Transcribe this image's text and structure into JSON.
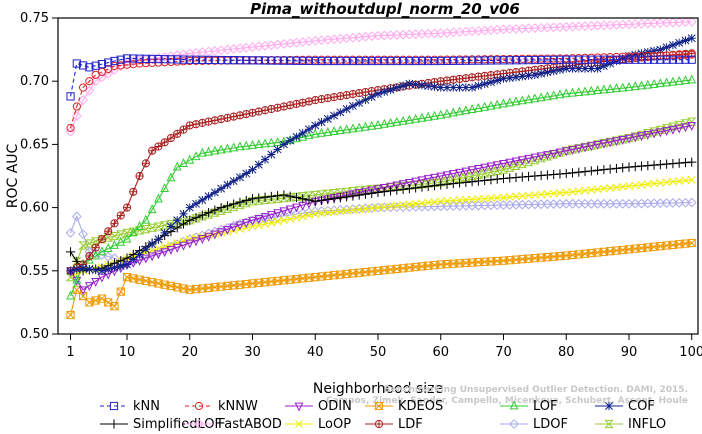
{
  "chart_data": {
    "type": "line",
    "title": "Pima_withoutdupl_norm_20_v06",
    "xlabel": "Neighborhood size",
    "ylabel": "ROC AUC",
    "xlim": [
      1,
      100
    ],
    "ylim": [
      0.5,
      0.75
    ],
    "xticks": [
      1,
      10,
      20,
      30,
      40,
      50,
      60,
      70,
      80,
      90,
      100
    ],
    "yticks": [
      "0.50",
      "0.55",
      "0.60",
      "0.65",
      "0.70",
      "0.75"
    ],
    "grid": false,
    "watermark_lines": [
      "Benchmarking Unsupervised Outlier Detection. DAMI, 2015.",
      "Campos, Zimek, Sander, Campello, Micenkova, Schubert, Assent, Houle"
    ],
    "series": [
      {
        "name": "kNN",
        "color": "#2222cc",
        "marker": "square",
        "dash": "4,3",
        "knots": [
          [
            1,
            0.688
          ],
          [
            2,
            0.714
          ],
          [
            4,
            0.711
          ],
          [
            8,
            0.716
          ],
          [
            10,
            0.718
          ],
          [
            20,
            0.717
          ],
          [
            40,
            0.716
          ],
          [
            60,
            0.716
          ],
          [
            80,
            0.717
          ],
          [
            100,
            0.717
          ]
        ]
      },
      {
        "name": "kNNW",
        "color": "#dd2222",
        "marker": "circle",
        "dash": "4,3",
        "knots": [
          [
            1,
            0.663
          ],
          [
            2,
            0.68
          ],
          [
            3,
            0.695
          ],
          [
            5,
            0.705
          ],
          [
            8,
            0.712
          ],
          [
            12,
            0.714
          ],
          [
            20,
            0.716
          ],
          [
            40,
            0.717
          ],
          [
            60,
            0.717
          ],
          [
            80,
            0.718
          ],
          [
            100,
            0.721
          ]
        ]
      },
      {
        "name": "ODIN",
        "color": "#9922cc",
        "marker": "tri-down",
        "dash": "",
        "knots": [
          [
            1,
            0.55
          ],
          [
            3,
            0.535
          ],
          [
            6,
            0.545
          ],
          [
            10,
            0.555
          ],
          [
            20,
            0.572
          ],
          [
            30,
            0.59
          ],
          [
            40,
            0.605
          ],
          [
            50,
            0.615
          ],
          [
            60,
            0.625
          ],
          [
            70,
            0.635
          ],
          [
            80,
            0.645
          ],
          [
            90,
            0.655
          ],
          [
            100,
            0.665
          ]
        ]
      },
      {
        "name": "KDEOS",
        "color": "#ee9900",
        "marker": "square-x",
        "dash": "",
        "knots": [
          [
            1,
            0.515
          ],
          [
            2,
            0.535
          ],
          [
            4,
            0.525
          ],
          [
            6,
            0.528
          ],
          [
            8,
            0.522
          ],
          [
            10,
            0.545
          ],
          [
            15,
            0.54
          ],
          [
            20,
            0.535
          ],
          [
            30,
            0.54
          ],
          [
            40,
            0.545
          ],
          [
            50,
            0.55
          ],
          [
            60,
            0.555
          ],
          [
            70,
            0.558
          ],
          [
            80,
            0.562
          ],
          [
            90,
            0.567
          ],
          [
            100,
            0.572
          ]
        ]
      },
      {
        "name": "LOF",
        "color": "#33cc33",
        "marker": "tri-up",
        "dash": "",
        "knots": [
          [
            1,
            0.53
          ],
          [
            3,
            0.555
          ],
          [
            6,
            0.565
          ],
          [
            10,
            0.575
          ],
          [
            13,
            0.59
          ],
          [
            16,
            0.615
          ],
          [
            18,
            0.632
          ],
          [
            22,
            0.643
          ],
          [
            28,
            0.648
          ],
          [
            35,
            0.652
          ],
          [
            40,
            0.658
          ],
          [
            50,
            0.665
          ],
          [
            60,
            0.673
          ],
          [
            70,
            0.682
          ],
          [
            80,
            0.69
          ],
          [
            90,
            0.695
          ],
          [
            100,
            0.701
          ]
        ]
      },
      {
        "name": "COF",
        "color": "#112288",
        "marker": "asterisk",
        "dash": "",
        "knots": [
          [
            1,
            0.55
          ],
          [
            3,
            0.552
          ],
          [
            6,
            0.55
          ],
          [
            10,
            0.555
          ],
          [
            15,
            0.575
          ],
          [
            20,
            0.6
          ],
          [
            25,
            0.615
          ],
          [
            30,
            0.63
          ],
          [
            35,
            0.65
          ],
          [
            40,
            0.665
          ],
          [
            45,
            0.678
          ],
          [
            50,
            0.69
          ],
          [
            55,
            0.698
          ],
          [
            60,
            0.695
          ],
          [
            65,
            0.695
          ],
          [
            70,
            0.702
          ],
          [
            75,
            0.705
          ],
          [
            80,
            0.71
          ],
          [
            85,
            0.71
          ],
          [
            90,
            0.72
          ],
          [
            95,
            0.725
          ],
          [
            100,
            0.734
          ]
        ]
      },
      {
        "name": "SimplifiedLOF",
        "color": "#000000",
        "marker": "plus",
        "dash": "",
        "knots": [
          [
            1,
            0.565
          ],
          [
            3,
            0.55
          ],
          [
            6,
            0.552
          ],
          [
            10,
            0.56
          ],
          [
            15,
            0.575
          ],
          [
            20,
            0.59
          ],
          [
            25,
            0.6
          ],
          [
            30,
            0.607
          ],
          [
            35,
            0.61
          ],
          [
            40,
            0.605
          ],
          [
            50,
            0.612
          ],
          [
            60,
            0.618
          ],
          [
            70,
            0.623
          ],
          [
            80,
            0.627
          ],
          [
            90,
            0.632
          ],
          [
            100,
            0.636
          ]
        ]
      },
      {
        "name": "FastABOD",
        "color": "#ffaaee",
        "marker": "diamond",
        "dash": "",
        "knots": [
          [
            1,
            0.66
          ],
          [
            3,
            0.685
          ],
          [
            5,
            0.7
          ],
          [
            10,
            0.715
          ],
          [
            20,
            0.722
          ],
          [
            30,
            0.727
          ],
          [
            40,
            0.732
          ],
          [
            50,
            0.736
          ],
          [
            60,
            0.738
          ],
          [
            70,
            0.741
          ],
          [
            80,
            0.743
          ],
          [
            90,
            0.745
          ],
          [
            100,
            0.747
          ]
        ]
      },
      {
        "name": "LoOP",
        "color": "#eeee00",
        "marker": "x",
        "dash": "",
        "knots": [
          [
            1,
            0.545
          ],
          [
            3,
            0.55
          ],
          [
            6,
            0.553
          ],
          [
            10,
            0.56
          ],
          [
            20,
            0.575
          ],
          [
            30,
            0.585
          ],
          [
            40,
            0.595
          ],
          [
            50,
            0.6
          ],
          [
            60,
            0.605
          ],
          [
            70,
            0.608
          ],
          [
            80,
            0.612
          ],
          [
            90,
            0.617
          ],
          [
            100,
            0.622
          ]
        ]
      },
      {
        "name": "LDF",
        "color": "#aa2222",
        "marker": "circle-plus",
        "dash": "",
        "knots": [
          [
            1,
            0.55
          ],
          [
            3,
            0.555
          ],
          [
            6,
            0.575
          ],
          [
            10,
            0.6
          ],
          [
            12,
            0.625
          ],
          [
            14,
            0.645
          ],
          [
            17,
            0.655
          ],
          [
            20,
            0.665
          ],
          [
            25,
            0.67
          ],
          [
            30,
            0.675
          ],
          [
            35,
            0.68
          ],
          [
            40,
            0.685
          ],
          [
            50,
            0.693
          ],
          [
            60,
            0.7
          ],
          [
            70,
            0.706
          ],
          [
            80,
            0.712
          ],
          [
            90,
            0.718
          ],
          [
            100,
            0.722
          ]
        ]
      },
      {
        "name": "LDOF",
        "color": "#aaaaee",
        "marker": "diamond",
        "dash": "",
        "knots": [
          [
            1,
            0.58
          ],
          [
            2,
            0.593
          ],
          [
            4,
            0.565
          ],
          [
            8,
            0.56
          ],
          [
            10,
            0.555
          ],
          [
            20,
            0.575
          ],
          [
            30,
            0.59
          ],
          [
            40,
            0.597
          ],
          [
            50,
            0.6
          ],
          [
            60,
            0.601
          ],
          [
            70,
            0.602
          ],
          [
            80,
            0.603
          ],
          [
            90,
            0.603
          ],
          [
            100,
            0.604
          ]
        ]
      },
      {
        "name": "INFLO",
        "color": "#99cc33",
        "marker": "hourglass",
        "dash": "",
        "knots": [
          [
            1,
            0.545
          ],
          [
            3,
            0.57
          ],
          [
            6,
            0.575
          ],
          [
            10,
            0.58
          ],
          [
            15,
            0.585
          ],
          [
            20,
            0.59
          ],
          [
            30,
            0.605
          ],
          [
            40,
            0.61
          ],
          [
            50,
            0.615
          ],
          [
            60,
            0.62
          ],
          [
            70,
            0.63
          ],
          [
            80,
            0.645
          ],
          [
            90,
            0.655
          ],
          [
            100,
            0.668
          ]
        ]
      }
    ]
  }
}
